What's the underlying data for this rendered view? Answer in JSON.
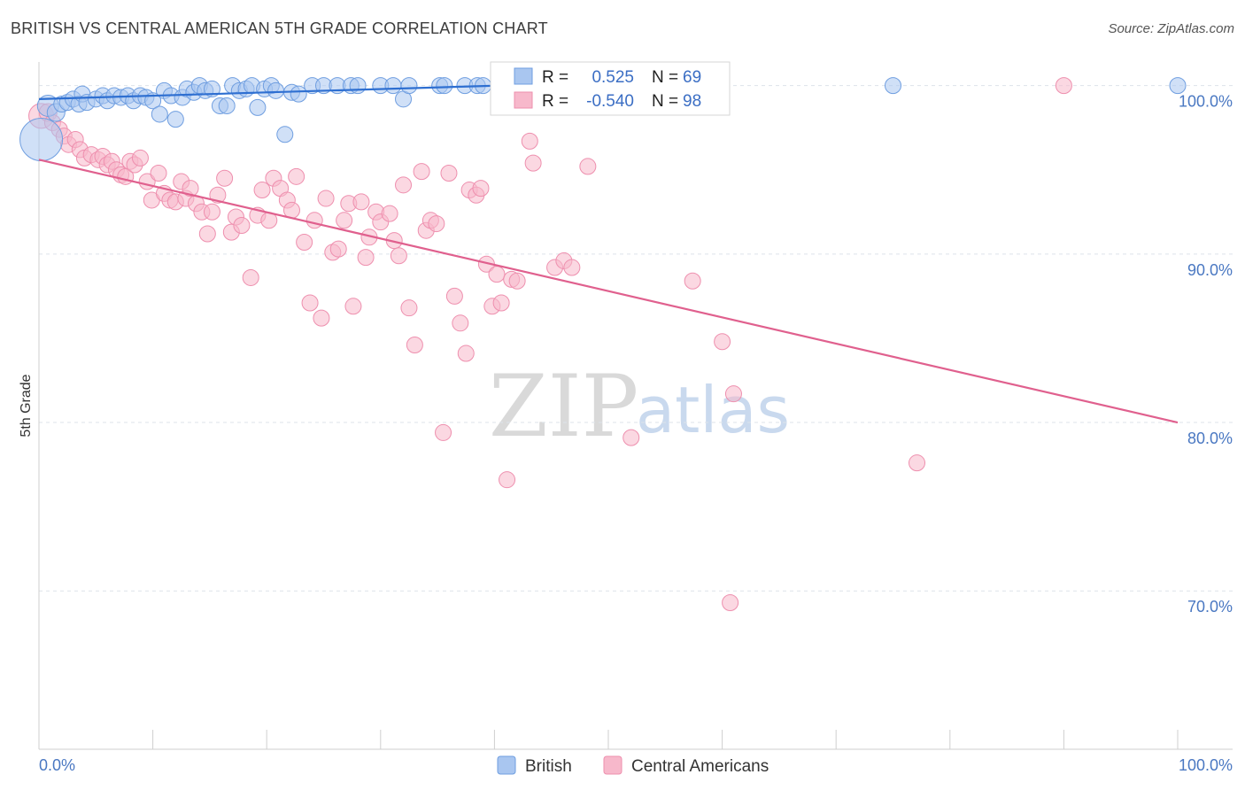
{
  "header": {
    "title": "BRITISH VS CENTRAL AMERICAN 5TH GRADE CORRELATION CHART",
    "source": "Source: ZipAtlas.com"
  },
  "watermark": {
    "zip": "ZIP",
    "atlas": "atlas"
  },
  "legend": {
    "r_label": "R =",
    "n_label": "N =",
    "british": {
      "r": "0.525",
      "n": "69"
    },
    "central": {
      "r": "-0.540",
      "n": "98"
    }
  },
  "bottom_legend": {
    "british": "British",
    "central": "Central Americans"
  },
  "colors": {
    "british_fill": "#a9c6f0",
    "british_stroke": "#6f9ee0",
    "british_line": "#2e6fd1",
    "central_fill": "#f7b8cb",
    "central_stroke": "#ee8fae",
    "central_line": "#e0608e",
    "grid": "#dde3ea",
    "axis": "#cfcfcf",
    "tick_label": "#4a78c2"
  },
  "chart_data": {
    "type": "scatter",
    "title": "BRITISH VS CENTRAL AMERICAN 5TH GRADE CORRELATION CHART",
    "xlabel": "",
    "ylabel": "5th Grade",
    "xlim": [
      0,
      100
    ],
    "ylim": [
      60.6,
      101.4
    ],
    "x_tick_labels": [
      "0.0%",
      "100.0%"
    ],
    "y_ticks": [
      70,
      80,
      90,
      100
    ],
    "y_tick_labels": [
      "70.0%",
      "80.0%",
      "90.0%",
      "100.0%"
    ],
    "grid": true,
    "legend_position": "top-center",
    "series": [
      {
        "name": "British",
        "r": 0.525,
        "n": 69,
        "trend": {
          "x": [
            0,
            40.4
          ],
          "y": [
            99.2,
            100.0
          ]
        },
        "points": [
          [
            0.2,
            96.8,
            24
          ],
          [
            0.8,
            98.8,
            12
          ],
          [
            1.5,
            98.4,
            10
          ],
          [
            2.0,
            98.9,
            9
          ],
          [
            2.5,
            99.0,
            9
          ],
          [
            3.0,
            99.2,
            9
          ],
          [
            3.5,
            98.9,
            9
          ],
          [
            3.8,
            99.5,
            9
          ],
          [
            4.2,
            99.0,
            9
          ],
          [
            5.0,
            99.2,
            9
          ],
          [
            5.6,
            99.4,
            9
          ],
          [
            6.0,
            99.1,
            9
          ],
          [
            6.6,
            99.4,
            9
          ],
          [
            7.2,
            99.3,
            9
          ],
          [
            7.8,
            99.4,
            9
          ],
          [
            8.3,
            99.1,
            9
          ],
          [
            8.9,
            99.4,
            9
          ],
          [
            9.4,
            99.3,
            9
          ],
          [
            10.0,
            99.1,
            9
          ],
          [
            10.6,
            98.3,
            9
          ],
          [
            11.0,
            99.7,
            9
          ],
          [
            11.6,
            99.4,
            9
          ],
          [
            12.0,
            98.0,
            9
          ],
          [
            12.6,
            99.3,
            9
          ],
          [
            13.0,
            99.8,
            9
          ],
          [
            13.6,
            99.6,
            9
          ],
          [
            14.1,
            100.0,
            9
          ],
          [
            14.6,
            99.7,
            9
          ],
          [
            15.2,
            99.8,
            9
          ],
          [
            15.9,
            98.8,
            9
          ],
          [
            16.5,
            98.8,
            9
          ],
          [
            17.0,
            100.0,
            9
          ],
          [
            17.6,
            99.7,
            9
          ],
          [
            18.2,
            99.8,
            9
          ],
          [
            18.7,
            100.0,
            9
          ],
          [
            19.2,
            98.7,
            9
          ],
          [
            19.8,
            99.8,
            9
          ],
          [
            20.4,
            100.0,
            9
          ],
          [
            20.8,
            99.7,
            9
          ],
          [
            21.6,
            97.1,
            9
          ],
          [
            22.2,
            99.6,
            9
          ],
          [
            22.8,
            99.5,
            9
          ],
          [
            24.0,
            100.0,
            9
          ],
          [
            25.0,
            100.0,
            9
          ],
          [
            26.2,
            100.0,
            9
          ],
          [
            27.4,
            100.0,
            9
          ],
          [
            28.0,
            100.0,
            9
          ],
          [
            30.0,
            100.0,
            9
          ],
          [
            31.1,
            100.0,
            9
          ],
          [
            32.0,
            99.2,
            9
          ],
          [
            32.5,
            100.0,
            9
          ],
          [
            35.2,
            100.0,
            9
          ],
          [
            35.6,
            100.0,
            9
          ],
          [
            37.4,
            100.0,
            9
          ],
          [
            38.5,
            100.0,
            9
          ],
          [
            39.0,
            100.0,
            9
          ],
          [
            40.5,
            100.0,
            9
          ],
          [
            41.3,
            100.0,
            9
          ],
          [
            43.1,
            100.0,
            9
          ],
          [
            45.7,
            100.0,
            9
          ],
          [
            47.2,
            100.0,
            9
          ],
          [
            48.1,
            100.0,
            9
          ],
          [
            49.5,
            100.0,
            9
          ],
          [
            50.7,
            100.0,
            9
          ],
          [
            51.3,
            100.0,
            9
          ],
          [
            52.5,
            100.0,
            9
          ],
          [
            56.4,
            100.0,
            9
          ],
          [
            75.0,
            100.0,
            9
          ],
          [
            100.0,
            100.0,
            9
          ]
        ]
      },
      {
        "name": "Central Americans",
        "r": -0.54,
        "n": 98,
        "trend": {
          "x": [
            0,
            100
          ],
          "y": [
            95.6,
            80.0
          ]
        },
        "points": [
          [
            0.2,
            98.2,
            14
          ],
          [
            0.8,
            98.4,
            10
          ],
          [
            1.2,
            97.8,
            9
          ],
          [
            1.8,
            97.4,
            9
          ],
          [
            2.2,
            97.0,
            9
          ],
          [
            2.6,
            96.5,
            9
          ],
          [
            3.2,
            96.8,
            9
          ],
          [
            3.6,
            96.2,
            9
          ],
          [
            4.0,
            95.7,
            9
          ],
          [
            4.6,
            95.9,
            9
          ],
          [
            5.2,
            95.6,
            9
          ],
          [
            5.6,
            95.8,
            9
          ],
          [
            6.0,
            95.3,
            9
          ],
          [
            6.4,
            95.5,
            9
          ],
          [
            6.8,
            95.0,
            9
          ],
          [
            7.2,
            94.7,
            9
          ],
          [
            7.6,
            94.6,
            9
          ],
          [
            8.0,
            95.5,
            9
          ],
          [
            8.4,
            95.3,
            9
          ],
          [
            8.9,
            95.7,
            9
          ],
          [
            9.5,
            94.3,
            9
          ],
          [
            9.9,
            93.2,
            9
          ],
          [
            10.5,
            94.8,
            9
          ],
          [
            11.0,
            93.6,
            9
          ],
          [
            11.5,
            93.2,
            9
          ],
          [
            12.0,
            93.1,
            9
          ],
          [
            12.5,
            94.3,
            9
          ],
          [
            12.9,
            93.3,
            9
          ],
          [
            13.3,
            93.9,
            9
          ],
          [
            13.8,
            93.0,
            9
          ],
          [
            14.3,
            92.5,
            9
          ],
          [
            14.8,
            91.2,
            9
          ],
          [
            15.2,
            92.5,
            9
          ],
          [
            15.7,
            93.5,
            9
          ],
          [
            16.3,
            94.5,
            9
          ],
          [
            16.9,
            91.3,
            9
          ],
          [
            17.3,
            92.2,
            9
          ],
          [
            17.8,
            91.7,
            9
          ],
          [
            18.6,
            88.6,
            9
          ],
          [
            19.2,
            92.3,
            9
          ],
          [
            19.6,
            93.8,
            9
          ],
          [
            20.2,
            92.0,
            9
          ],
          [
            20.6,
            94.5,
            9
          ],
          [
            21.2,
            93.9,
            9
          ],
          [
            21.8,
            93.2,
            9
          ],
          [
            22.2,
            92.6,
            9
          ],
          [
            22.6,
            94.6,
            9
          ],
          [
            23.3,
            90.7,
            9
          ],
          [
            23.8,
            87.1,
            9
          ],
          [
            24.2,
            92.0,
            9
          ],
          [
            24.8,
            86.2,
            9
          ],
          [
            25.2,
            93.3,
            9
          ],
          [
            25.8,
            90.1,
            9
          ],
          [
            26.3,
            90.3,
            9
          ],
          [
            26.8,
            92.0,
            9
          ],
          [
            27.2,
            93.0,
            9
          ],
          [
            27.6,
            86.9,
            9
          ],
          [
            28.3,
            93.1,
            9
          ],
          [
            28.7,
            89.8,
            9
          ],
          [
            29.0,
            91.0,
            9
          ],
          [
            29.6,
            92.5,
            9
          ],
          [
            30.0,
            91.9,
            9
          ],
          [
            30.8,
            92.4,
            9
          ],
          [
            31.2,
            90.8,
            9
          ],
          [
            31.6,
            89.9,
            9
          ],
          [
            32.0,
            94.1,
            9
          ],
          [
            32.5,
            86.8,
            9
          ],
          [
            33.0,
            84.6,
            9
          ],
          [
            33.6,
            94.9,
            9
          ],
          [
            34.0,
            91.4,
            9
          ],
          [
            34.4,
            92.0,
            9
          ],
          [
            34.9,
            91.8,
            9
          ],
          [
            35.5,
            79.4,
            9
          ],
          [
            36.0,
            94.8,
            9
          ],
          [
            36.5,
            87.5,
            9
          ],
          [
            37.0,
            85.9,
            9
          ],
          [
            37.5,
            84.1,
            9
          ],
          [
            37.8,
            93.8,
            9
          ],
          [
            38.4,
            93.5,
            9
          ],
          [
            38.8,
            93.9,
            9
          ],
          [
            39.3,
            89.4,
            9
          ],
          [
            39.8,
            86.9,
            9
          ],
          [
            40.2,
            88.8,
            9
          ],
          [
            40.6,
            87.1,
            9
          ],
          [
            41.1,
            76.6,
            9
          ],
          [
            41.5,
            88.5,
            9
          ],
          [
            42.0,
            88.4,
            9
          ],
          [
            43.1,
            96.7,
            9
          ],
          [
            43.4,
            95.4,
            9
          ],
          [
            45.3,
            89.2,
            9
          ],
          [
            46.1,
            89.6,
            9
          ],
          [
            46.8,
            89.2,
            9
          ],
          [
            48.2,
            95.2,
            9
          ],
          [
            52.0,
            79.1,
            9
          ],
          [
            57.4,
            88.4,
            9
          ],
          [
            60.0,
            84.8,
            9
          ],
          [
            61.0,
            81.7,
            9
          ],
          [
            77.1,
            77.6,
            9
          ],
          [
            60.7,
            69.3,
            9
          ],
          [
            90.0,
            100.0,
            9
          ]
        ]
      }
    ]
  }
}
